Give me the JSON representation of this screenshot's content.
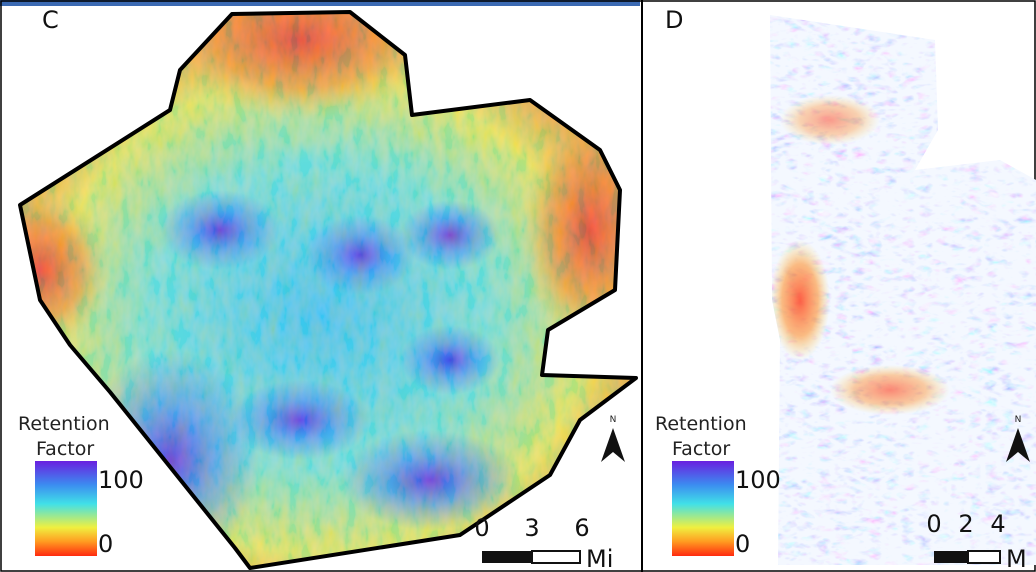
{
  "panels": [
    {
      "label": "C",
      "legend": {
        "title": [
          "Retention",
          "Factor"
        ],
        "max": 100,
        "min": 0
      },
      "scale": {
        "ticks": [
          0,
          3,
          6
        ],
        "unit": "Mi"
      },
      "north": "N"
    },
    {
      "label": "D",
      "legend": {
        "title": [
          "Retention",
          "Factor"
        ],
        "max": 100,
        "min": 0
      },
      "scale": {
        "ticks": [
          0,
          2,
          4
        ],
        "unit": "M"
      },
      "north": "N"
    }
  ]
}
